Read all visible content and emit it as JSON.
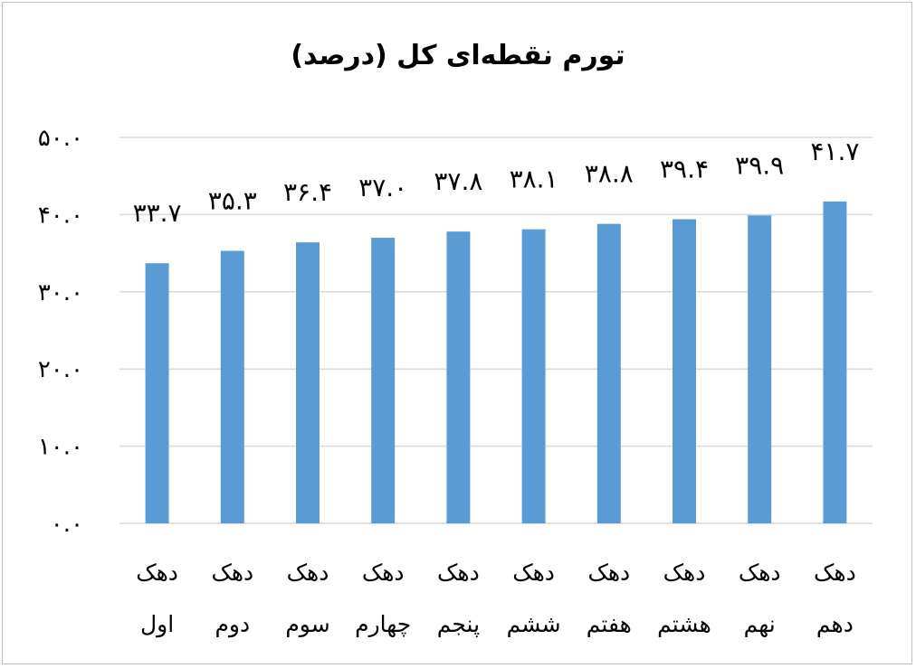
{
  "chart_data": {
    "type": "bar",
    "title": "تورم نقطه‌ای کل (درصد)",
    "categories": [
      [
        "دهک",
        "اول"
      ],
      [
        "دهک",
        "دوم"
      ],
      [
        "دهک",
        "سوم"
      ],
      [
        "دهک",
        "چهارم"
      ],
      [
        "دهک",
        "پنجم"
      ],
      [
        "دهک",
        "ششم"
      ],
      [
        "دهک",
        "هفتم"
      ],
      [
        "دهک",
        "هشتم"
      ],
      [
        "دهک",
        "نهم"
      ],
      [
        "دهک",
        "دهم"
      ]
    ],
    "values": [
      33.7,
      35.3,
      36.4,
      37.0,
      37.8,
      38.1,
      38.8,
      39.4,
      39.9,
      41.7
    ],
    "data_labels": [
      "۳۳.۷",
      "۳۵.۳",
      "۳۶.۴",
      "۳۷.۰",
      "۳۷.۸",
      "۳۸.۱",
      "۳۸.۸",
      "۳۹.۴",
      "۳۹.۹",
      "۴۱.۷"
    ],
    "ylim": [
      0,
      50
    ],
    "y_ticks": [
      0,
      10,
      20,
      30,
      40,
      50
    ],
    "y_tick_labels": [
      "۰.۰",
      "۱۰.۰",
      "۲۰.۰",
      "۳۰.۰",
      "۴۰.۰",
      "۵۰.۰"
    ],
    "grid": true,
    "legend": "none",
    "bar_color": "#5b9bd5",
    "grid_color": "#d9d9d9"
  }
}
